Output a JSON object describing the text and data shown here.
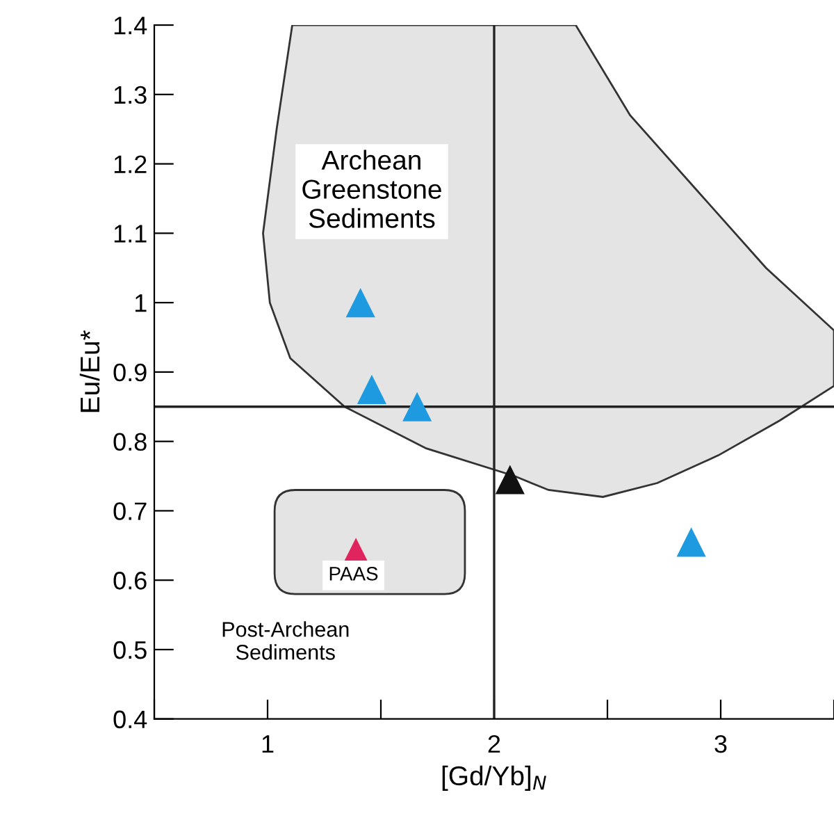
{
  "chart_data": {
    "type": "scatter",
    "xlabel": "[Gd/Yb]$_{N}$",
    "ylabel": "Eu/Eu*",
    "x": [
      1.41,
      1.46,
      1.66,
      2.07,
      2.87,
      1.39
    ],
    "values": [
      1.0,
      0.875,
      0.85,
      0.745,
      0.655,
      0.64
    ],
    "colors": [
      "#1e9be0",
      "#1e9be0",
      "#1e9be0",
      "#111111",
      "#1e9be0",
      "#e0245e"
    ],
    "marker": "triangle",
    "grid": false,
    "xlim": [
      0.5,
      3.5
    ],
    "xticks": [
      {
        "value": 0.5,
        "label": null
      },
      1,
      {
        "value": 1.5,
        "label": null
      },
      2,
      {
        "value": 2.5,
        "label": null
      },
      3,
      {
        "value": 3.5,
        "label": null
      }
    ],
    "ylim": [
      0.4,
      1.4
    ],
    "yticks": [
      0.4,
      0.5,
      0.6,
      0.7,
      0.8,
      0.9,
      1,
      1.1,
      1.2,
      1.3,
      1.4
    ],
    "ref_lines": [
      {
        "axis": "x",
        "value": 2,
        "color": "#222222"
      },
      {
        "axis": "y",
        "value": 0.85,
        "color": "#222222"
      }
    ],
    "annotations": [
      "Archean\nGreenstone\nSediments",
      "PAAS",
      "Post-Archean\nSediments"
    ]
  }
}
